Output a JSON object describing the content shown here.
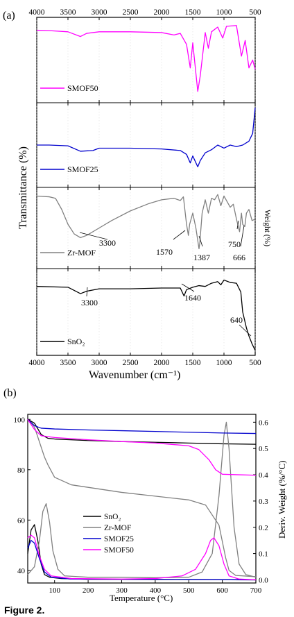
{
  "figure": {
    "panel_a_label": "(a)",
    "panel_b_label": "(b)",
    "caption": "Figure 2."
  },
  "chart_data": [
    {
      "type": "line",
      "panel": "(a)",
      "xlabel": "Wavenumber (cm⁻¹)",
      "ylabel": "Transmittance (%)",
      "right_label": "Weight (%)",
      "xlim": [
        4000,
        500
      ],
      "x_ticks": [
        4000,
        3500,
        3000,
        2500,
        2000,
        1500,
        1000,
        500
      ],
      "reversed_x": true,
      "stacked_panels": 4,
      "series": [
        {
          "name": "SMOF50",
          "color": "#ff00ff",
          "points": [
            [
              4000,
              0.88
            ],
            [
              3800,
              0.875
            ],
            [
              3500,
              0.86
            ],
            [
              3300,
              0.8
            ],
            [
              3200,
              0.84
            ],
            [
              3000,
              0.86
            ],
            [
              2500,
              0.86
            ],
            [
              2000,
              0.85
            ],
            [
              1800,
              0.82
            ],
            [
              1700,
              0.84
            ],
            [
              1600,
              0.7
            ],
            [
              1540,
              0.4
            ],
            [
              1500,
              0.72
            ],
            [
              1420,
              0.1
            ],
            [
              1380,
              0.3
            ],
            [
              1300,
              0.85
            ],
            [
              1250,
              0.65
            ],
            [
              1200,
              0.86
            ],
            [
              1100,
              0.92
            ],
            [
              1020,
              0.78
            ],
            [
              960,
              0.93
            ],
            [
              800,
              0.94
            ],
            [
              720,
              0.55
            ],
            [
              660,
              0.75
            ],
            [
              600,
              0.4
            ],
            [
              540,
              0.5
            ],
            [
              500,
              0.38
            ]
          ]
        },
        {
          "name": "SMOF25",
          "color": "#0000cd",
          "points": [
            [
              4000,
              0.5
            ],
            [
              3800,
              0.5
            ],
            [
              3500,
              0.49
            ],
            [
              3300,
              0.42
            ],
            [
              3100,
              0.43
            ],
            [
              3000,
              0.46
            ],
            [
              2500,
              0.46
            ],
            [
              2000,
              0.45
            ],
            [
              1700,
              0.43
            ],
            [
              1600,
              0.38
            ],
            [
              1540,
              0.27
            ],
            [
              1500,
              0.36
            ],
            [
              1420,
              0.22
            ],
            [
              1380,
              0.3
            ],
            [
              1300,
              0.4
            ],
            [
              1200,
              0.44
            ],
            [
              1100,
              0.5
            ],
            [
              1000,
              0.46
            ],
            [
              900,
              0.5
            ],
            [
              800,
              0.48
            ],
            [
              700,
              0.5
            ],
            [
              600,
              0.55
            ],
            [
              540,
              0.65
            ],
            [
              500,
              0.98
            ]
          ]
        },
        {
          "name": "Zr-MOF",
          "color": "#808080",
          "annotations": [
            "3300",
            "1570",
            "1387",
            "750",
            "666"
          ],
          "points": [
            [
              4000,
              0.93
            ],
            [
              3800,
              0.92
            ],
            [
              3700,
              0.9
            ],
            [
              3600,
              0.75
            ],
            [
              3500,
              0.55
            ],
            [
              3400,
              0.42
            ],
            [
              3300,
              0.37
            ],
            [
              3200,
              0.4
            ],
            [
              3000,
              0.5
            ],
            [
              2800,
              0.6
            ],
            [
              2500,
              0.73
            ],
            [
              2200,
              0.83
            ],
            [
              2000,
              0.88
            ],
            [
              1800,
              0.9
            ],
            [
              1700,
              0.87
            ],
            [
              1650,
              0.92
            ],
            [
              1600,
              0.55
            ],
            [
              1570,
              0.4
            ],
            [
              1550,
              0.55
            ],
            [
              1500,
              0.7
            ],
            [
              1450,
              0.5
            ],
            [
              1400,
              0.22
            ],
            [
              1387,
              0.3
            ],
            [
              1350,
              0.7
            ],
            [
              1300,
              0.88
            ],
            [
              1250,
              0.7
            ],
            [
              1200,
              0.9
            ],
            [
              1150,
              0.88
            ],
            [
              1100,
              0.95
            ],
            [
              1050,
              0.8
            ],
            [
              1000,
              0.93
            ],
            [
              900,
              0.78
            ],
            [
              850,
              0.82
            ],
            [
              800,
              0.62
            ],
            [
              750,
              0.45
            ],
            [
              720,
              0.7
            ],
            [
              700,
              0.55
            ],
            [
              666,
              0.52
            ],
            [
              640,
              0.7
            ],
            [
              600,
              0.75
            ],
            [
              550,
              0.6
            ],
            [
              500,
              0.62
            ]
          ]
        },
        {
          "name": "SnO₂",
          "color": "#000000",
          "annotations": [
            "3300",
            "1640",
            "640"
          ],
          "points": [
            [
              4000,
              0.82
            ],
            [
              3500,
              0.81
            ],
            [
              3300,
              0.73
            ],
            [
              3200,
              0.76
            ],
            [
              3000,
              0.79
            ],
            [
              2500,
              0.79
            ],
            [
              2000,
              0.8
            ],
            [
              1800,
              0.8
            ],
            [
              1700,
              0.8
            ],
            [
              1640,
              0.7
            ],
            [
              1600,
              0.78
            ],
            [
              1500,
              0.81
            ],
            [
              1400,
              0.83
            ],
            [
              1300,
              0.82
            ],
            [
              1200,
              0.86
            ],
            [
              1100,
              0.88
            ],
            [
              1050,
              0.84
            ],
            [
              1000,
              0.9
            ],
            [
              900,
              0.87
            ],
            [
              800,
              0.86
            ],
            [
              730,
              0.75
            ],
            [
              700,
              0.5
            ],
            [
              640,
              0.3
            ],
            [
              600,
              0.2
            ],
            [
              550,
              0.1
            ],
            [
              500,
              0.02
            ]
          ]
        }
      ]
    },
    {
      "type": "line",
      "panel": "(b)",
      "xlabel": "Temperature (°C)",
      "ylabel": "Weight (%)",
      "y2label": "Deriv. Weight (%/°C)",
      "xlim": [
        20,
        700
      ],
      "ylim": [
        35,
        102
      ],
      "y2lim": [
        -0.012,
        0.63
      ],
      "x_ticks": [
        100,
        200,
        300,
        400,
        500,
        600,
        700
      ],
      "y_ticks": [
        40,
        60,
        80,
        100
      ],
      "y2_ticks": [
        0.0,
        0.1,
        0.2,
        0.3,
        0.4,
        0.5,
        0.6
      ],
      "legend_position": "center-left",
      "series": [
        {
          "name": "SnO₂",
          "color": "#000000",
          "weight": [
            [
              20,
              100
            ],
            [
              40,
              98.5
            ],
            [
              60,
              94
            ],
            [
              80,
              92.5
            ],
            [
              100,
              92.2
            ],
            [
              200,
              91.6
            ],
            [
              300,
              91.2
            ],
            [
              400,
              90.9
            ],
            [
              500,
              90.6
            ],
            [
              600,
              90.3
            ],
            [
              700,
              90.1
            ]
          ],
          "deriv": [
            [
              20,
              0.1
            ],
            [
              30,
              0.19
            ],
            [
              40,
              0.21
            ],
            [
              50,
              0.15
            ],
            [
              60,
              0.06
            ],
            [
              70,
              0.02
            ],
            [
              85,
              0.01
            ],
            [
              120,
              0.005
            ],
            [
              200,
              0.002
            ],
            [
              400,
              0.001
            ],
            [
              700,
              0.0
            ]
          ]
        },
        {
          "name": "Zr-MOF",
          "color": "#808080",
          "weight": [
            [
              20,
              100
            ],
            [
              40,
              97
            ],
            [
              60,
              89
            ],
            [
              70,
              85
            ],
            [
              80,
              82
            ],
            [
              100,
              77
            ],
            [
              150,
              74
            ],
            [
              200,
              73
            ],
            [
              300,
              71
            ],
            [
              400,
              69.5
            ],
            [
              500,
              68
            ],
            [
              550,
              66
            ],
            [
              590,
              58
            ],
            [
              610,
              45
            ],
            [
              620,
              40
            ],
            [
              640,
              38
            ],
            [
              700,
              37.5
            ]
          ],
          "deriv": [
            [
              20,
              0.02
            ],
            [
              40,
              0.05
            ],
            [
              55,
              0.15
            ],
            [
              65,
              0.26
            ],
            [
              75,
              0.29
            ],
            [
              85,
              0.22
            ],
            [
              95,
              0.11
            ],
            [
              110,
              0.04
            ],
            [
              130,
              0.015
            ],
            [
              200,
              0.01
            ],
            [
              300,
              0.01
            ],
            [
              400,
              0.008
            ],
            [
              500,
              0.01
            ],
            [
              540,
              0.03
            ],
            [
              570,
              0.1
            ],
            [
              590,
              0.32
            ],
            [
              605,
              0.55
            ],
            [
              612,
              0.6
            ],
            [
              620,
              0.5
            ],
            [
              635,
              0.2
            ],
            [
              650,
              0.06
            ],
            [
              670,
              0.02
            ],
            [
              700,
              0.01
            ]
          ]
        },
        {
          "name": "SMOF25",
          "color": "#0000cd",
          "weight": [
            [
              20,
              100
            ],
            [
              40,
              97.5
            ],
            [
              60,
              96.5
            ],
            [
              100,
              96.2
            ],
            [
              200,
              95.8
            ],
            [
              300,
              95.5
            ],
            [
              400,
              95.2
            ],
            [
              500,
              94.9
            ],
            [
              600,
              94.6
            ],
            [
              700,
              94.4
            ]
          ],
          "deriv": [
            [
              20,
              0.12
            ],
            [
              30,
              0.15
            ],
            [
              40,
              0.14
            ],
            [
              55,
              0.08
            ],
            [
              70,
              0.03
            ],
            [
              90,
              0.01
            ],
            [
              150,
              0.003
            ],
            [
              300,
              0.002
            ],
            [
              500,
              0.001
            ],
            [
              700,
              0.0
            ]
          ]
        },
        {
          "name": "SMOF50",
          "color": "#ff00ff",
          "weight": [
            [
              20,
              100
            ],
            [
              40,
              96
            ],
            [
              60,
              93.5
            ],
            [
              100,
              92.8
            ],
            [
              200,
              91.9
            ],
            [
              300,
              91.2
            ],
            [
              400,
              90.6
            ],
            [
              500,
              89.5
            ],
            [
              530,
              88
            ],
            [
              560,
              84
            ],
            [
              580,
              80
            ],
            [
              600,
              78.2
            ],
            [
              650,
              78
            ],
            [
              700,
              77.8
            ]
          ],
          "deriv": [
            [
              20,
              0.16
            ],
            [
              30,
              0.17
            ],
            [
              40,
              0.16
            ],
            [
              55,
              0.09
            ],
            [
              70,
              0.04
            ],
            [
              90,
              0.015
            ],
            [
              150,
              0.005
            ],
            [
              300,
              0.003
            ],
            [
              400,
              0.005
            ],
            [
              480,
              0.015
            ],
            [
              520,
              0.04
            ],
            [
              550,
              0.1
            ],
            [
              565,
              0.15
            ],
            [
              575,
              0.16
            ],
            [
              590,
              0.13
            ],
            [
              605,
              0.06
            ],
            [
              620,
              0.015
            ],
            [
              650,
              0.003
            ],
            [
              700,
              0.0
            ]
          ]
        }
      ]
    }
  ]
}
